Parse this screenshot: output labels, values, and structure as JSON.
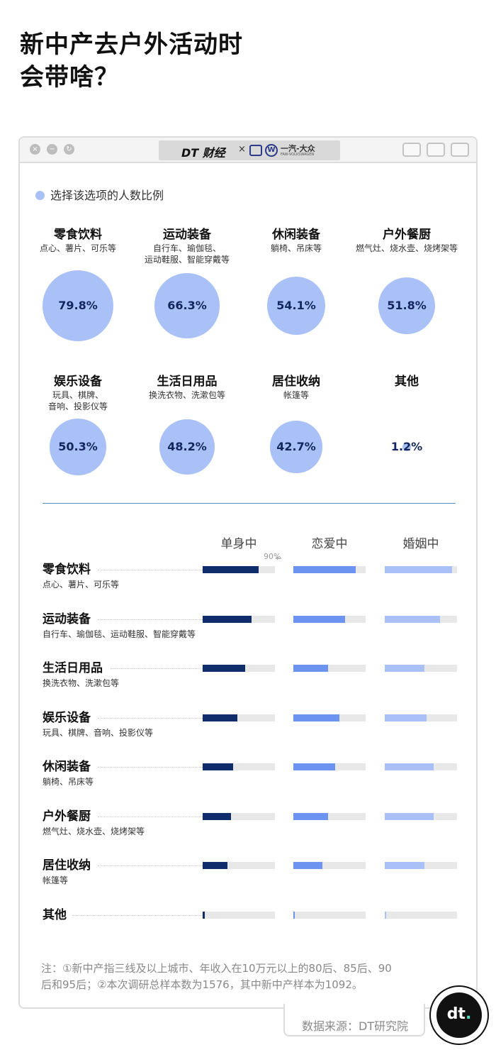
{
  "title": {
    "line1": "新中产去户外活动时",
    "line2": "会带啥？"
  },
  "window": {
    "brand": {
      "dt": "DT 财经",
      "x": "×",
      "faw": "一汽-大众",
      "faw_sub": "FAW-VOLKSWAGEN"
    }
  },
  "legend": {
    "label": "选择该选项的人数比例",
    "color": "#a9c1f6"
  },
  "bubbles": [
    {
      "name": "零食饮料",
      "sub1": "点心、薯片、可乐等",
      "sub2": "",
      "value": 79.8,
      "label": "79.8%"
    },
    {
      "name": "运动装备",
      "sub1": "自行车、瑜伽毯、",
      "sub2": "运动鞋服、智能穿戴等",
      "value": 66.3,
      "label": "66.3%"
    },
    {
      "name": "休闲装备",
      "sub1": "躺椅、吊床等",
      "sub2": "",
      "value": 54.1,
      "label": "54.1%"
    },
    {
      "name": "户外餐厨",
      "sub1": "燃气灶、烧水壶、烧烤架等",
      "sub2": "",
      "value": 51.8,
      "label": "51.8%"
    },
    {
      "name": "娱乐设备",
      "sub1": "玩具、棋牌、",
      "sub2": "音响、投影仪等",
      "value": 50.3,
      "label": "50.3%"
    },
    {
      "name": "生活日用品",
      "sub1": "换洗衣物、洗漱包等",
      "sub2": "",
      "value": 48.2,
      "label": "48.2%"
    },
    {
      "name": "居住收纳",
      "sub1": "帐篷等",
      "sub2": "",
      "value": 42.7,
      "label": "42.7%"
    },
    {
      "name": "其他",
      "sub1": "",
      "sub2": "",
      "value": 1.2,
      "label": "1.2%"
    }
  ],
  "chart_data": {
    "type": "bar",
    "columns": [
      "单身中",
      "恋爱中",
      "婚姻中"
    ],
    "scale_note": "90%",
    "xlim": [
      0,
      90
    ],
    "colors": [
      "#0f2d6b",
      "#6b93ef",
      "#a9c1f6"
    ],
    "categories": [
      {
        "name": "零食饮料",
        "sub": "点心、薯片、可乐等",
        "values": [
          70,
          78,
          84
        ]
      },
      {
        "name": "运动装备",
        "sub": "自行车、瑜伽毯、运动鞋服、智能穿戴等",
        "values": [
          61,
          64,
          69
        ]
      },
      {
        "name": "生活日用品",
        "sub": "换洗衣物、洗漱包等",
        "values": [
          53,
          43,
          49
        ]
      },
      {
        "name": "娱乐设备",
        "sub": "玩具、棋牌、音响、投影仪等",
        "values": [
          43,
          57,
          52
        ]
      },
      {
        "name": "休闲装备",
        "sub": "躺椅、吊床等",
        "values": [
          38,
          52,
          61
        ]
      },
      {
        "name": "户外餐厨",
        "sub": "燃气灶、烧水壶、烧烤架等",
        "values": [
          35,
          43,
          61
        ]
      },
      {
        "name": "居住收纳",
        "sub": "帐篷等",
        "values": [
          31,
          36,
          49
        ]
      },
      {
        "name": "其他",
        "sub": "",
        "values": [
          3,
          1,
          1
        ]
      }
    ]
  },
  "footnote": {
    "line1": "注：①新中产指三线及以上城市、年收入在10万元以上的80后、85后、90",
    "line2": "后和95后；②本次调研总样本数为1576，其中新中产样本为1092。"
  },
  "source": "数据来源：DT研究院",
  "badge": {
    "text": "dt",
    "dot": "."
  }
}
